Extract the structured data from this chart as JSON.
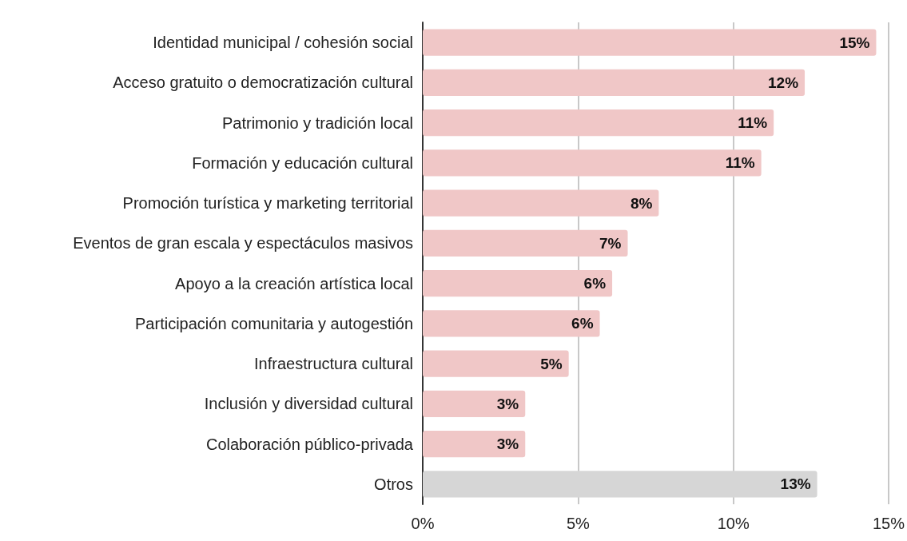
{
  "chart_data": {
    "type": "bar",
    "orientation": "horizontal",
    "categories": [
      "Identidad municipal / cohesión social",
      "Acceso gratuito o democratización cultural",
      "Patrimonio y tradición local",
      "Formación y educación cultural",
      "Promoción turística y marketing territorial",
      "Eventos de gran escala y espectáculos masivos",
      "Apoyo a la creación artística local",
      "Participación comunitaria y autogestión",
      "Infraestructura cultural",
      "Inclusión y diversidad cultural",
      "Colaboración público-privada",
      "Otros"
    ],
    "values": [
      14.6,
      12.3,
      11.3,
      10.9,
      7.6,
      6.6,
      6.1,
      5.7,
      4.7,
      3.3,
      3.3,
      12.7
    ],
    "value_labels": [
      "15%",
      "12%",
      "11%",
      "11%",
      "8%",
      "7%",
      "6%",
      "6%",
      "5%",
      "3%",
      "3%",
      "13%"
    ],
    "colors": [
      "#f0c7c7",
      "#f0c7c7",
      "#f0c7c7",
      "#f0c7c7",
      "#f0c7c7",
      "#f0c7c7",
      "#f0c7c7",
      "#f0c7c7",
      "#f0c7c7",
      "#f0c7c7",
      "#f0c7c7",
      "#d6d6d6"
    ],
    "xlim": [
      0,
      15
    ],
    "xticks": [
      {
        "value": 0,
        "label": "0%"
      },
      {
        "value": 5,
        "label": "5%"
      },
      {
        "value": 10,
        "label": "10%"
      },
      {
        "value": 15,
        "label": "15%"
      }
    ],
    "grid": "x"
  }
}
